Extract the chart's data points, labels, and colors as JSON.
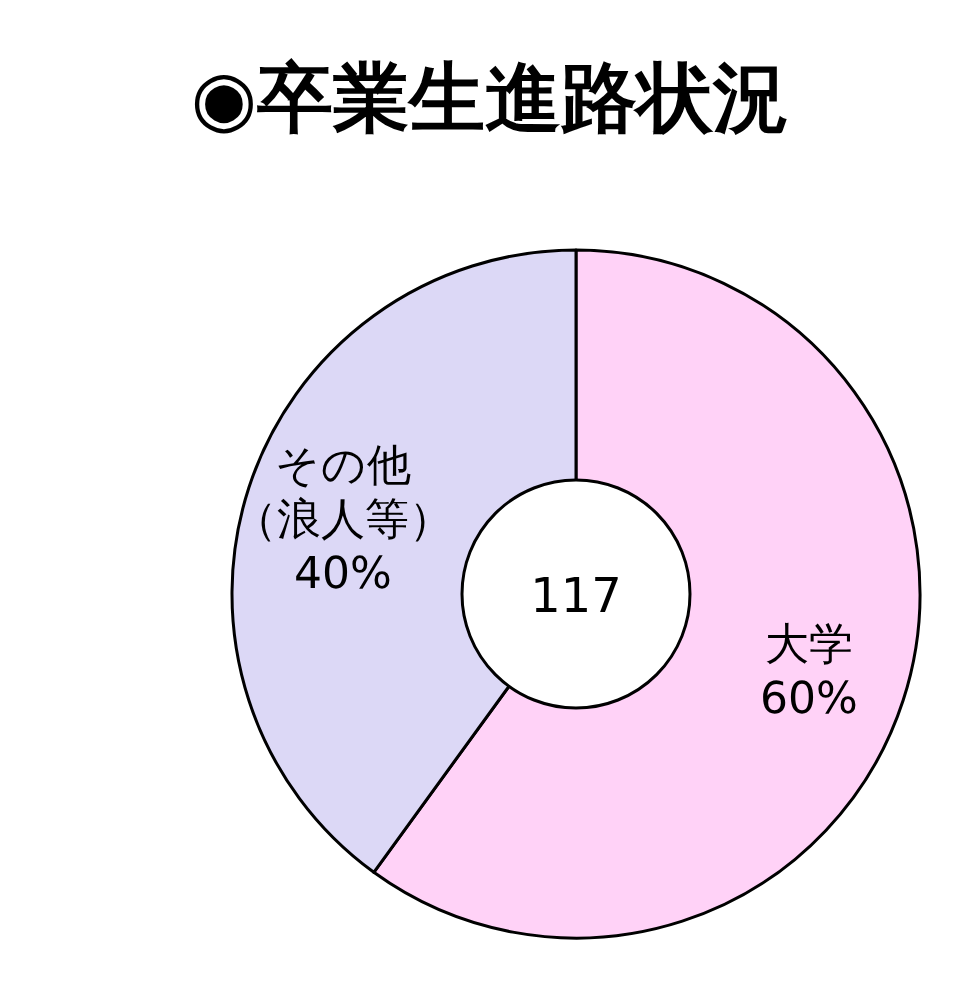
{
  "chart_data": {
    "type": "donut",
    "title": "◉卒業生進路状況",
    "categories": [
      "大学",
      "その他（浪人等）"
    ],
    "values": [
      60,
      40
    ],
    "value_labels": [
      "60%",
      "40%"
    ],
    "colors": [
      "#ffd2f7",
      "#dcd8f6"
    ],
    "annotations": [
      "117"
    ]
  }
}
